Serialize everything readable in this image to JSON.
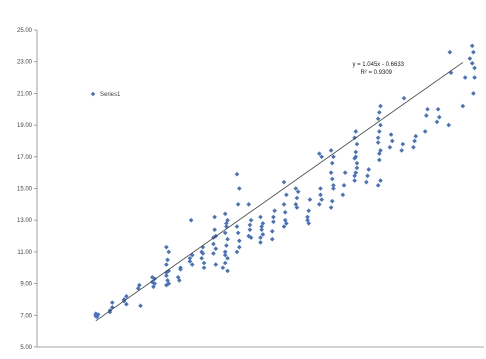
{
  "chart_data": {
    "type": "scatter",
    "title": "",
    "xlabel": "",
    "ylabel": "",
    "xlim": [
      4.5,
      23.5
    ],
    "ylim": [
      5.0,
      25.0
    ],
    "y_ticks": [
      {
        "value": 5.0,
        "label": "5.00"
      },
      {
        "value": 7.0,
        "label": "7.00"
      },
      {
        "value": 9.0,
        "label": "9.00"
      },
      {
        "value": 11.0,
        "label": "11.00"
      },
      {
        "value": 13.0,
        "label": "13.00"
      },
      {
        "value": 15.0,
        "label": "15.00"
      },
      {
        "value": 17.0,
        "label": "17.00"
      },
      {
        "value": 19.0,
        "label": "19.00"
      },
      {
        "value": 21.0,
        "label": "21.00"
      },
      {
        "value": 23.0,
        "label": "23.00"
      },
      {
        "value": 25.0,
        "label": "25.00"
      }
    ],
    "grid": false,
    "legend": {
      "position": "left",
      "entries": [
        "Series1"
      ]
    },
    "marker_color": "#4472C4",
    "trendline": {
      "slope": 1.045,
      "intercept": -0.6633,
      "x_range": [
        7.0,
        22.6
      ],
      "color": "#404040"
    },
    "annotation": {
      "equation": "y = 1.045x - 0.6633",
      "r_squared": "R² = 0.9309"
    },
    "series": [
      {
        "name": "Series1",
        "points": [
          [
            7.0,
            7.1
          ],
          [
            7.0,
            7.0
          ],
          [
            7.05,
            6.9
          ],
          [
            7.1,
            7.05
          ],
          [
            7.0,
            6.95
          ],
          [
            7.6,
            7.3
          ],
          [
            7.7,
            7.5
          ],
          [
            7.7,
            7.8
          ],
          [
            7.6,
            7.2
          ],
          [
            8.2,
            7.9
          ],
          [
            8.3,
            8.2
          ],
          [
            8.2,
            8.0
          ],
          [
            8.3,
            7.7
          ],
          [
            8.8,
            8.7
          ],
          [
            8.85,
            8.9
          ],
          [
            8.9,
            7.6
          ],
          [
            9.4,
            9.1
          ],
          [
            9.5,
            9.3
          ],
          [
            9.45,
            8.8
          ],
          [
            9.5,
            9.0
          ],
          [
            9.4,
            9.4
          ],
          [
            10.0,
            8.9
          ],
          [
            10.0,
            9.5
          ],
          [
            10.1,
            9.8
          ],
          [
            10.0,
            10.2
          ],
          [
            10.05,
            10.5
          ],
          [
            10.1,
            11.0
          ],
          [
            10.0,
            11.3
          ],
          [
            10.05,
            9.2
          ],
          [
            10.1,
            9.0
          ],
          [
            10.0,
            9.7
          ],
          [
            10.5,
            9.4
          ],
          [
            10.6,
            9.9
          ],
          [
            10.55,
            9.2
          ],
          [
            10.6,
            10.0
          ],
          [
            11.0,
            10.4
          ],
          [
            11.1,
            10.8
          ],
          [
            11.05,
            13.0
          ],
          [
            11.0,
            10.6
          ],
          [
            11.1,
            10.2
          ],
          [
            11.5,
            11.0
          ],
          [
            11.6,
            10.3
          ],
          [
            11.55,
            11.3
          ],
          [
            11.6,
            10.0
          ],
          [
            11.5,
            10.6
          ],
          [
            11.55,
            10.9
          ],
          [
            12.0,
            10.9
          ],
          [
            12.1,
            12.0
          ],
          [
            12.05,
            13.2
          ],
          [
            12.0,
            11.5
          ],
          [
            12.1,
            11.2
          ],
          [
            12.0,
            11.9
          ],
          [
            12.05,
            12.4
          ],
          [
            12.1,
            10.2
          ],
          [
            12.4,
            10.0
          ],
          [
            12.5,
            10.3
          ],
          [
            12.6,
            10.6
          ],
          [
            12.5,
            11.0
          ],
          [
            12.55,
            11.4
          ],
          [
            12.6,
            11.8
          ],
          [
            12.5,
            12.2
          ],
          [
            12.55,
            12.6
          ],
          [
            12.6,
            13.0
          ],
          [
            12.5,
            13.4
          ],
          [
            12.55,
            12.8
          ],
          [
            12.6,
            9.8
          ],
          [
            12.5,
            10.8
          ],
          [
            13.0,
            11.0
          ],
          [
            13.1,
            11.7
          ],
          [
            13.05,
            14.0
          ],
          [
            13.1,
            15.0
          ],
          [
            13.0,
            15.9
          ],
          [
            13.05,
            12.2
          ],
          [
            13.1,
            11.3
          ],
          [
            13.0,
            12.6
          ],
          [
            13.5,
            12.0
          ],
          [
            13.55,
            12.4
          ],
          [
            13.6,
            13.0
          ],
          [
            13.5,
            14.0
          ],
          [
            13.55,
            12.7
          ],
          [
            13.6,
            11.9
          ],
          [
            14.0,
            11.9
          ],
          [
            14.05,
            12.4
          ],
          [
            14.1,
            12.8
          ],
          [
            14.0,
            13.2
          ],
          [
            14.05,
            12.6
          ],
          [
            14.1,
            12.1
          ],
          [
            14.0,
            11.6
          ],
          [
            14.5,
            12.3
          ],
          [
            14.55,
            13.2
          ],
          [
            14.6,
            13.6
          ],
          [
            14.5,
            11.8
          ],
          [
            14.55,
            12.9
          ],
          [
            15.0,
            12.6
          ],
          [
            15.05,
            13.5
          ],
          [
            15.1,
            14.6
          ],
          [
            15.0,
            15.4
          ],
          [
            15.05,
            13.0
          ],
          [
            15.1,
            12.8
          ],
          [
            15.0,
            14.0
          ],
          [
            15.5,
            14.0
          ],
          [
            15.55,
            14.4
          ],
          [
            15.6,
            14.8
          ],
          [
            15.5,
            15.0
          ],
          [
            15.55,
            13.8
          ],
          [
            16.0,
            13.0
          ],
          [
            16.05,
            13.6
          ],
          [
            16.1,
            14.3
          ],
          [
            16.0,
            13.2
          ],
          [
            16.05,
            12.8
          ],
          [
            16.5,
            14.0
          ],
          [
            16.55,
            14.6
          ],
          [
            16.6,
            17.0
          ],
          [
            16.5,
            17.2
          ],
          [
            16.55,
            15.0
          ],
          [
            16.6,
            14.3
          ],
          [
            17.0,
            13.8
          ],
          [
            17.05,
            14.2
          ],
          [
            17.1,
            15.0
          ],
          [
            17.0,
            16.0
          ],
          [
            17.05,
            16.6
          ],
          [
            17.1,
            17.0
          ],
          [
            17.0,
            17.4
          ],
          [
            17.05,
            15.6
          ],
          [
            17.1,
            15.2
          ],
          [
            17.5,
            14.6
          ],
          [
            17.55,
            15.2
          ],
          [
            17.6,
            16.0
          ],
          [
            18.0,
            15.5
          ],
          [
            18.05,
            16.0
          ],
          [
            18.1,
            16.6
          ],
          [
            18.0,
            16.9
          ],
          [
            18.05,
            17.3
          ],
          [
            18.1,
            17.8
          ],
          [
            18.0,
            18.2
          ],
          [
            18.05,
            18.6
          ],
          [
            18.1,
            16.3
          ],
          [
            18.0,
            15.8
          ],
          [
            18.05,
            17.0
          ],
          [
            18.5,
            15.4
          ],
          [
            18.55,
            15.8
          ],
          [
            18.6,
            16.2
          ],
          [
            19.0,
            15.2
          ],
          [
            19.05,
            16.8
          ],
          [
            19.1,
            17.4
          ],
          [
            19.0,
            17.9
          ],
          [
            19.05,
            18.6
          ],
          [
            19.1,
            19.0
          ],
          [
            19.0,
            19.4
          ],
          [
            19.05,
            19.8
          ],
          [
            19.1,
            20.2
          ],
          [
            19.0,
            18.2
          ],
          [
            19.05,
            17.2
          ],
          [
            19.1,
            15.5
          ],
          [
            19.5,
            17.6
          ],
          [
            19.55,
            18.4
          ],
          [
            19.6,
            18.0
          ],
          [
            20.0,
            17.4
          ],
          [
            20.05,
            17.8
          ],
          [
            20.1,
            20.7
          ],
          [
            20.5,
            17.6
          ],
          [
            20.55,
            18.0
          ],
          [
            20.6,
            18.3
          ],
          [
            21.0,
            18.6
          ],
          [
            21.05,
            19.6
          ],
          [
            21.1,
            20.0
          ],
          [
            21.5,
            19.2
          ],
          [
            21.6,
            19.5
          ],
          [
            21.55,
            20.0
          ],
          [
            22.0,
            19.0
          ],
          [
            22.05,
            23.6
          ],
          [
            22.1,
            22.3
          ],
          [
            22.6,
            20.2
          ],
          [
            22.7,
            22.0
          ],
          [
            22.9,
            23.2
          ],
          [
            23.0,
            24.0
          ],
          [
            23.05,
            23.6
          ],
          [
            23.1,
            22.6
          ],
          [
            23.0,
            22.9
          ],
          [
            23.05,
            21.0
          ],
          [
            23.1,
            22.0
          ]
        ]
      }
    ]
  }
}
